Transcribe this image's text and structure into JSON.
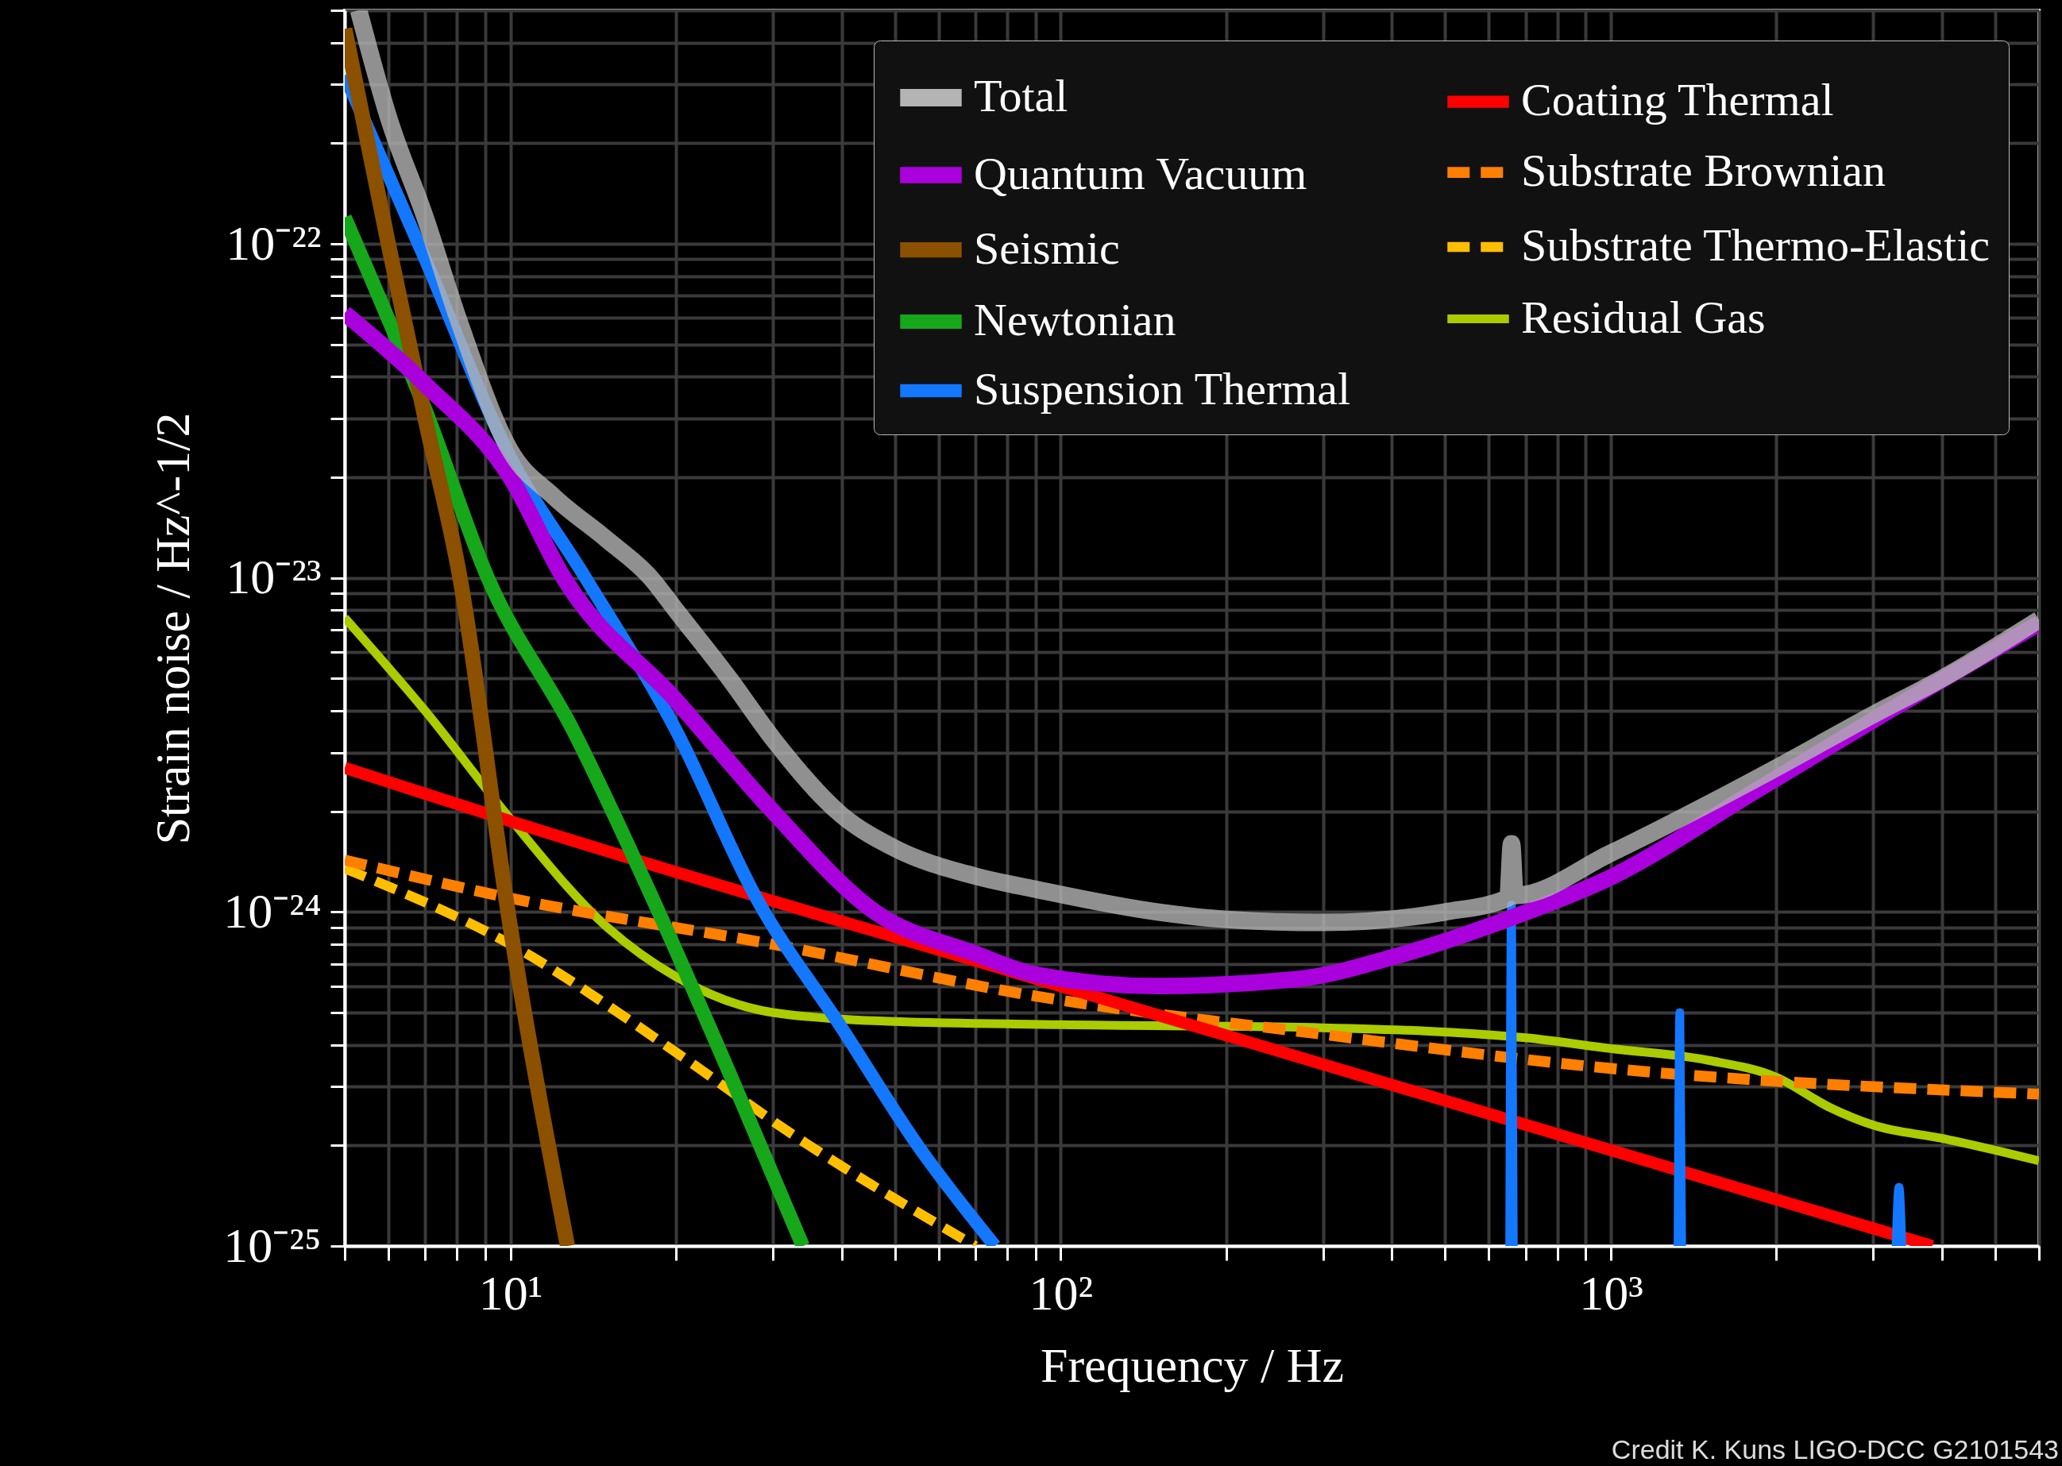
{
  "chart_data": {
    "type": "line",
    "xlabel": "Frequency / Hz",
    "ylabel": "Strain noise / Hz^-1/2",
    "log": "xy",
    "grid": true,
    "legend": "top right",
    "xlim": [
      5,
      6000
    ],
    "ylim": [
      1e-25,
      5e-22
    ],
    "xticks": [
      {
        "value": 5,
        "label": null
      },
      {
        "value": 6,
        "label": null
      },
      {
        "value": 7,
        "label": null
      },
      {
        "value": 8,
        "label": null
      },
      {
        "value": 9,
        "label": null
      },
      {
        "value": 10,
        "label": "10¹"
      },
      {
        "value": 20,
        "label": null
      },
      {
        "value": 30,
        "label": null
      },
      {
        "value": 40,
        "label": null
      },
      {
        "value": 50,
        "label": null
      },
      {
        "value": 60,
        "label": null
      },
      {
        "value": 70,
        "label": null
      },
      {
        "value": 80,
        "label": null
      },
      {
        "value": 90,
        "label": null
      },
      {
        "value": 100,
        "label": "10²"
      },
      {
        "value": 200,
        "label": null
      },
      {
        "value": 300,
        "label": null
      },
      {
        "value": 400,
        "label": null
      },
      {
        "value": 500,
        "label": null
      },
      {
        "value": 600,
        "label": null
      },
      {
        "value": 700,
        "label": null
      },
      {
        "value": 800,
        "label": null
      },
      {
        "value": 900,
        "label": null
      },
      {
        "value": 1000,
        "label": "10³"
      },
      {
        "value": 2000,
        "label": null
      },
      {
        "value": 3000,
        "label": null
      },
      {
        "value": 4000,
        "label": null
      },
      {
        "value": 5000,
        "label": null
      },
      {
        "value": 6000,
        "label": null
      }
    ],
    "yticks": [
      {
        "value": 1e-25,
        "label": "10⁻²⁵"
      },
      {
        "value": 2e-25,
        "label": null
      },
      {
        "value": 3e-25,
        "label": null
      },
      {
        "value": 4e-25,
        "label": null
      },
      {
        "value": 5e-25,
        "label": null
      },
      {
        "value": 6e-25,
        "label": null
      },
      {
        "value": 7e-25,
        "label": null
      },
      {
        "value": 8e-25,
        "label": null
      },
      {
        "value": 9e-25,
        "label": null
      },
      {
        "value": 1e-24,
        "label": "10⁻²⁴"
      },
      {
        "value": 2e-24,
        "label": null
      },
      {
        "value": 3e-24,
        "label": null
      },
      {
        "value": 4e-24,
        "label": null
      },
      {
        "value": 5e-24,
        "label": null
      },
      {
        "value": 6e-24,
        "label": null
      },
      {
        "value": 7e-24,
        "label": null
      },
      {
        "value": 8e-24,
        "label": null
      },
      {
        "value": 9e-24,
        "label": null
      },
      {
        "value": 1e-23,
        "label": "10⁻²³"
      },
      {
        "value": 2e-23,
        "label": null
      },
      {
        "value": 3e-23,
        "label": null
      },
      {
        "value": 4e-23,
        "label": null
      },
      {
        "value": 5e-23,
        "label": null
      },
      {
        "value": 6e-23,
        "label": null
      },
      {
        "value": 7e-23,
        "label": null
      },
      {
        "value": 8e-23,
        "label": null
      },
      {
        "value": 9e-23,
        "label": null
      },
      {
        "value": 1e-22,
        "label": "10⁻²²"
      },
      {
        "value": 2e-22,
        "label": null
      },
      {
        "value": 3e-22,
        "label": null
      },
      {
        "value": 4e-22,
        "label": null
      },
      {
        "value": 5e-22,
        "label": null
      }
    ],
    "annotations": [
      "Credit K. Kuns LIGO-DCC G2101543"
    ],
    "series": [
      {
        "name": "Total",
        "color": "#b4b4b4",
        "line_style": "solid",
        "x": [
          5.3,
          6,
          7,
          8,
          10,
          12,
          15,
          18,
          20,
          25,
          30,
          40,
          50,
          70,
          90,
          150,
          200,
          300,
          500,
          650,
          660,
          670,
          1000,
          1500,
          2000,
          3000,
          4000,
          6000
        ],
        "values": [
          5e-22,
          2.4e-22,
          1.2e-22,
          6.1e-23,
          2.4e-23,
          1.75e-23,
          1.3e-23,
          1e-23,
          8e-24,
          5e-24,
          3.3e-24,
          1.95e-24,
          1.55e-24,
          1.28e-24,
          1.17e-24,
          1e-24,
          9.5e-25,
          9.3e-25,
          1e-24,
          1.1e-24,
          1.6e-24,
          1.12e-24,
          1.5e-24,
          2.1e-24,
          2.7e-24,
          3.9e-24,
          5e-24,
          7.5e-24
        ]
      },
      {
        "name": "Quantum Vacuum",
        "color": "#aa00dd",
        "line_style": "solid",
        "x": [
          5,
          7,
          10,
          12.5,
          20,
          30,
          46,
          70,
          90,
          150,
          270,
          410,
          670,
          1000,
          1830,
          3200,
          6000
        ],
        "values": [
          6.2e-23,
          3.8e-23,
          2e-23,
          1e-23,
          4.3e-24,
          2e-24,
          1e-24,
          7.5e-25,
          6.5e-25,
          6e-25,
          6.3e-25,
          7.4e-25,
          9.7e-25,
          1.27e-24,
          2.3e-24,
          4e-24,
          7.3e-24
        ]
      },
      {
        "name": "Seismic",
        "color": "#8b5000",
        "line_style": "solid",
        "x": [
          5,
          6,
          7,
          8.1,
          10,
          12.7
        ],
        "values": [
          4.4e-22,
          1e-22,
          3e-23,
          1e-23,
          9e-25,
          1e-25
        ]
      },
      {
        "name": "Newtonian",
        "color": "#16a81a",
        "line_style": "solid",
        "x": [
          5,
          7,
          9.1,
          13,
          18.6,
          25,
          34
        ],
        "values": [
          1.2e-22,
          3.2e-23,
          1e-23,
          3.5e-24,
          1e-24,
          3.3e-25,
          1e-25
        ]
      },
      {
        "name": "Suspension Thermal",
        "color": "#1478ff",
        "line_style": "solid",
        "x": [
          5,
          7,
          10,
          13.7,
          20,
          28,
          40,
          55,
          76
        ],
        "values": [
          3.2e-22,
          9e-23,
          2.3e-23,
          1e-23,
          3.5e-24,
          1.1e-24,
          4.5e-25,
          2e-25,
          1e-25
        ]
      },
      {
        "color": "#1478ff",
        "line_style": "solid",
        "x": [
          655,
          660,
          665
        ],
        "values": [
          1e-25,
          1.05e-24,
          1e-25
        ]
      },
      {
        "color": "#1478ff",
        "line_style": "solid",
        "x": [
          1325,
          1335,
          1345
        ],
        "values": [
          1e-25,
          5e-25,
          1e-25
        ]
      },
      {
        "color": "#1478ff",
        "line_style": "solid",
        "x": [
          3300,
          3340,
          3380
        ],
        "values": [
          1e-25,
          1.5e-25,
          1e-25
        ]
      },
      {
        "name": "Coating Thermal",
        "color": "#ff0000",
        "line_style": "solid",
        "x": [
          5,
          10,
          100,
          3840
        ],
        "values": [
          2.7e-24,
          1.87e-24,
          6e-25,
          1e-25
        ]
      },
      {
        "name": "Substrate Brownian",
        "color": "#ff7f00",
        "line_style": "dashed",
        "x": [
          5,
          10,
          30,
          90,
          300,
          1000,
          6000
        ],
        "values": [
          1.43e-24,
          1.1e-24,
          8e-25,
          5.6e-25,
          4.3e-25,
          3.4e-25,
          2.85e-25
        ]
      },
      {
        "name": "Substrate Thermo-Elastic",
        "color": "#ffbf00",
        "line_style": "dashed",
        "x": [
          5,
          10,
          20,
          32,
          70
        ],
        "values": [
          1.35e-24,
          8e-25,
          3.8e-25,
          2.2e-25,
          1e-25
        ]
      },
      {
        "name": "Residual Gas",
        "color": "#aacc00",
        "line_style": "solid",
        "x": [
          5,
          7,
          10,
          15,
          20,
          30,
          50,
          100,
          300,
          700,
          1000,
          1500,
          2000,
          2500,
          3000,
          4000,
          6000
        ],
        "values": [
          7.6e-24,
          4e-24,
          1.9e-24,
          9e-25,
          6.4e-25,
          5e-25,
          4.7e-25,
          4.6e-25,
          4.5e-25,
          4.2e-25,
          3.9e-25,
          3.6e-25,
          3.2e-25,
          2.6e-25,
          2.3e-25,
          2.1e-25,
          1.8e-25
        ]
      }
    ]
  }
}
